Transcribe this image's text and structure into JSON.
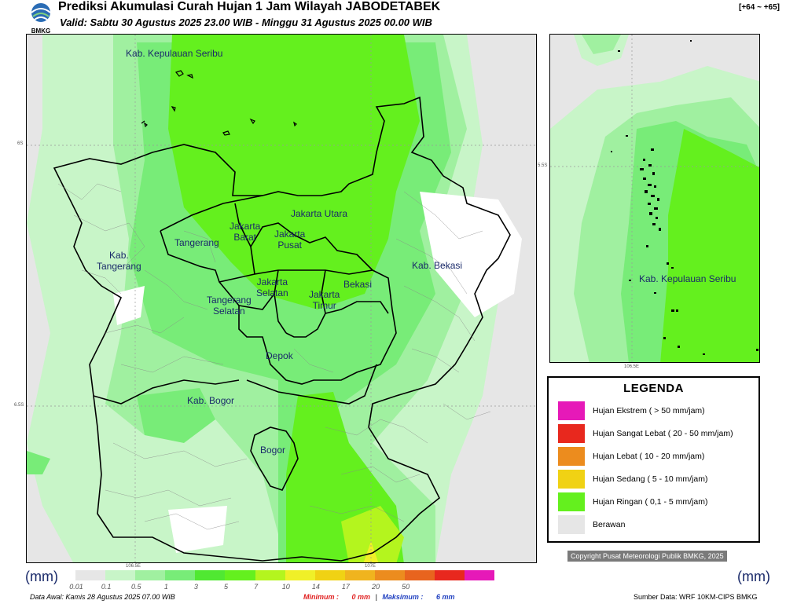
{
  "header": {
    "title": "Prediksi Akumulasi Curah Hujan 1 Jam Wilayah JABODETABEK",
    "subtitle": "Valid: Sabtu 30 Agustus 2025 23.00 WIB - Minggu 31 Agustus 2025 00.00 WIB",
    "range_tag": "[+64 ~ +65]",
    "logo_text": "BMKG"
  },
  "main_map": {
    "labels": {
      "kepulauan_seribu": "Kab. Kepulauan Seribu",
      "jakarta_utara": "Jakarta Utara",
      "jakarta_barat": "Jakarta\nBarat",
      "jakarta_pusat": "Jakarta\nPusat",
      "tangerang": "Tangerang",
      "kab_tangerang": "Kab.\nTangerang",
      "kab_bekasi": "Kab. Bekasi",
      "jakarta_selatan": "Jakarta\nSelatan",
      "jakarta_timur": "Jakarta\nTimur",
      "bekasi": "Bekasi",
      "tangerang_selatan": "Tangerang\nSelatan",
      "depok": "Depok",
      "kab_bogor": "Kab. Bogor",
      "bogor": "Bogor"
    },
    "ticks": {
      "lat_6s": "6S",
      "lat_6_5s": "6.5S",
      "lon_106_5e": "106.5E",
      "lon_107e": "107E"
    }
  },
  "inset_map": {
    "label": "Kab. Kepulauan Seribu",
    "ticks": {
      "lat": "5.5S",
      "lon": "106.5E"
    }
  },
  "legend": {
    "title": "LEGENDA",
    "items": [
      {
        "label": "Hujan Ekstrem ( > 50 mm/jam)",
        "color": "#e619b8"
      },
      {
        "label": "Hujan Sangat Lebat ( 20 - 50 mm/jam)",
        "color": "#e8281e"
      },
      {
        "label": "Hujan Lebat ( 10 - 20 mm/jam)",
        "color": "#ec8c1e"
      },
      {
        "label": "Hujan Sedang ( 5 - 10 mm/jam)",
        "color": "#f0d214"
      },
      {
        "label": "Hujan Ringan ( 0,1 - 5 mm/jam)",
        "color": "#64f01e"
      },
      {
        "label": "Berawan",
        "color": "#e6e6e6"
      }
    ]
  },
  "copyright": "Copyright Pusat Meteorologi Publik BMKG, 2025",
  "colorbar": {
    "unit_left": "(mm)",
    "unit_right": "(mm)",
    "colors": [
      "#e6e6e6",
      "#c8f5c8",
      "#a0f0a0",
      "#78ec78",
      "#50e832",
      "#64f01e",
      "#b4f51e",
      "#f0f028",
      "#f0d214",
      "#f0b41e",
      "#ec8c1e",
      "#e8641e",
      "#e8281e",
      "#e619b8"
    ],
    "ticks": [
      "0.01",
      "0.1",
      "0.5",
      "1",
      "3",
      "5",
      "7",
      "10",
      "14",
      "17",
      "20",
      "50"
    ]
  },
  "footer": {
    "data_awal": "Data Awal: Kamis 28 Agustus 2025 07.00 WIB",
    "minimum_label": "Minimum :",
    "minimum_value": "0 mm",
    "separator": "|",
    "maksimum_label": "Maksimum :",
    "maksimum_value": "6 mm",
    "source": "Sumber Data: WRF 10KM-CIPS BMKG"
  }
}
